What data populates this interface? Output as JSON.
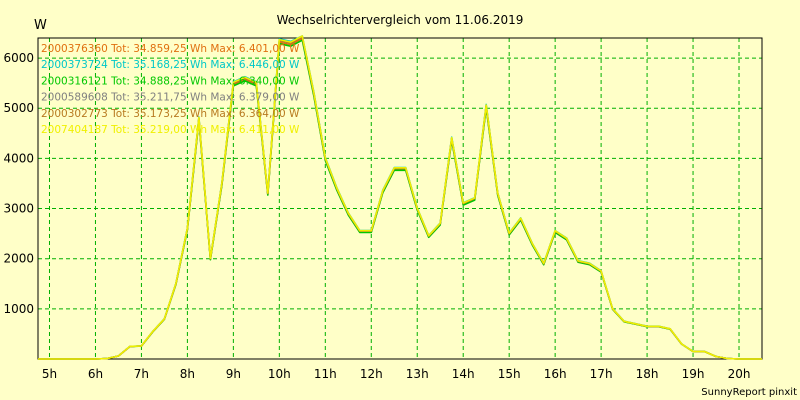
{
  "chart_data": {
    "type": "line",
    "title": "Wechselrichtervergleich vom 11.06.2019",
    "ylabel": "W",
    "xlabel": "",
    "footer": "SunnyReport pinxit",
    "xlim": [
      4.75,
      20.5
    ],
    "ylim": [
      0,
      6400
    ],
    "yticks": [
      1000,
      2000,
      3000,
      4000,
      5000,
      6000
    ],
    "xticks": [
      {
        "v": 5,
        "label": "5h"
      },
      {
        "v": 6,
        "label": "6h"
      },
      {
        "v": 7,
        "label": "7h"
      },
      {
        "v": 8,
        "label": "8h"
      },
      {
        "v": 9,
        "label": "9h"
      },
      {
        "v": 10,
        "label": "10h"
      },
      {
        "v": 11,
        "label": "11h"
      },
      {
        "v": 12,
        "label": "12h"
      },
      {
        "v": 13,
        "label": "13h"
      },
      {
        "v": 14,
        "label": "14h"
      },
      {
        "v": 15,
        "label": "15h"
      },
      {
        "v": 16,
        "label": "16h"
      },
      {
        "v": 17,
        "label": "17h"
      },
      {
        "v": 18,
        "label": "18h"
      },
      {
        "v": 19,
        "label": "19h"
      },
      {
        "v": 20,
        "label": "20h"
      }
    ],
    "grid": true,
    "legend_position": "top-left",
    "base": {
      "x": [
        4.75,
        5.5,
        6.0,
        6.25,
        6.5,
        6.75,
        7.0,
        7.25,
        7.5,
        7.75,
        8.0,
        8.25,
        8.5,
        8.75,
        9.0,
        9.25,
        9.5,
        9.75,
        10.0,
        10.25,
        10.5,
        10.75,
        11.0,
        11.25,
        11.5,
        11.75,
        12.0,
        12.25,
        12.5,
        12.75,
        13.0,
        13.25,
        13.5,
        13.75,
        14.0,
        14.25,
        14.5,
        14.75,
        15.0,
        15.25,
        15.5,
        15.75,
        16.0,
        16.25,
        16.5,
        16.75,
        17.0,
        17.25,
        17.5,
        17.75,
        18.0,
        18.25,
        18.5,
        18.75,
        19.0,
        19.25,
        19.5,
        19.75,
        20.0,
        20.25,
        20.5
      ],
      "y": [
        0,
        0,
        0,
        10,
        60,
        250,
        260,
        550,
        800,
        1500,
        2600,
        4800,
        2000,
        3500,
        5500,
        5600,
        5500,
        3300,
        6350,
        6300,
        6420,
        5300,
        4000,
        3400,
        2900,
        2550,
        2550,
        3350,
        3800,
        3800,
        3000,
        2450,
        2700,
        4400,
        3100,
        3200,
        5050,
        3300,
        2500,
        2800,
        2300,
        1900,
        2550,
        2400,
        1950,
        1900,
        1750,
        1000,
        750,
        700,
        650,
        650,
        600,
        300,
        150,
        150,
        50,
        10,
        0,
        0,
        0
      ]
    },
    "series": [
      {
        "name": "2000376360",
        "label": "2000376360 Tot: 34.859,25 Wh Max: 6.401,00 W",
        "color": "#e07010",
        "offset": 0.995
      },
      {
        "name": "2000373724",
        "label": "2000373724 Tot: 35.168,25 Wh Max: 6.446,00 W",
        "color": "#00c8c8",
        "offset": 1.005
      },
      {
        "name": "2000316121",
        "label": "2000316121 Tot: 34.888,25 Wh Max: 6.340,00 W",
        "color": "#00c800",
        "offset": 0.99
      },
      {
        "name": "2000589608",
        "label": "2000589608 Tot: 35.211,75 Wh Max: 6.379,00 W",
        "color": "#808080",
        "offset": 1.0
      },
      {
        "name": "2000302773",
        "label": "2000302773 Tot: 35.173,25 Wh Max: 6.364,00 W",
        "color": "#b87a20",
        "offset": 1.0
      },
      {
        "name": "2007404187",
        "label": "2007404187 Tot: 35.219,00 Wh Max: 6.411,00 W",
        "color": "#f0f000",
        "offset": 1.003
      }
    ]
  }
}
